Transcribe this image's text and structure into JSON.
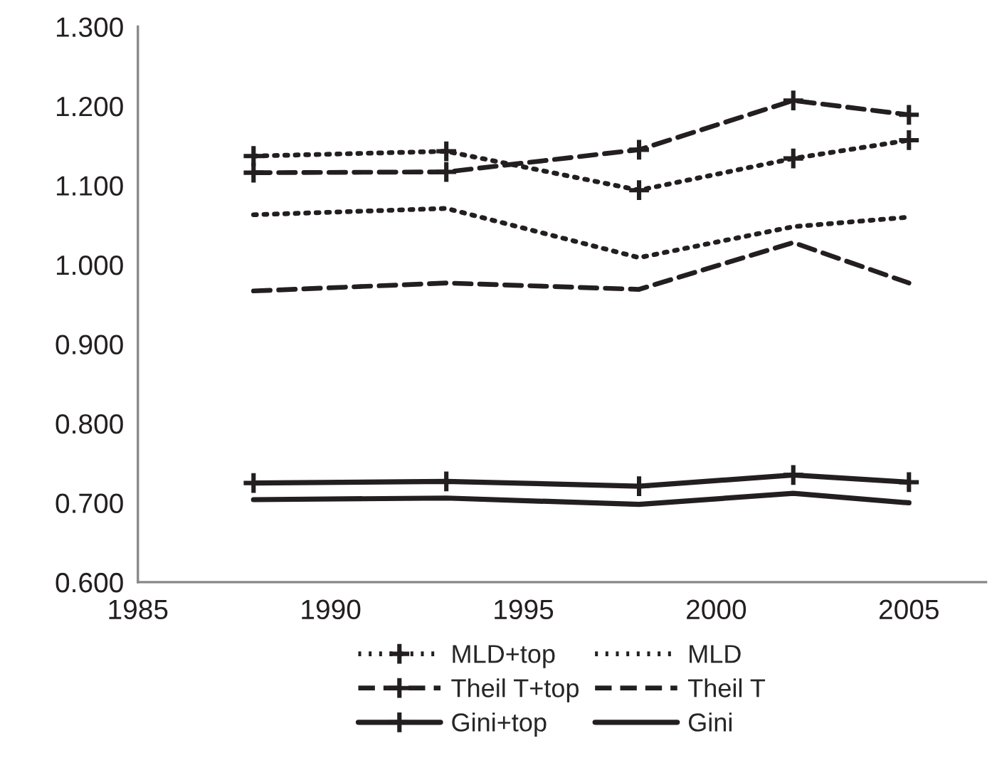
{
  "chart_data": {
    "type": "line",
    "x": [
      1988,
      1993,
      1998,
      2002,
      2005
    ],
    "series": [
      {
        "name": "MLD+top",
        "color": "#231f20",
        "line_style": "dotted",
        "marker": "cross",
        "values": [
          1.137,
          1.143,
          1.094,
          1.134,
          1.157
        ]
      },
      {
        "name": "MLD",
        "color": "#231f20",
        "line_style": "dotted",
        "marker": "none",
        "values": [
          1.063,
          1.071,
          1.009,
          1.048,
          1.06
        ]
      },
      {
        "name": "Theil T+top",
        "color": "#231f20",
        "line_style": "dashed",
        "marker": "cross",
        "values": [
          1.116,
          1.117,
          1.145,
          1.207,
          1.189
        ]
      },
      {
        "name": "Theil T",
        "color": "#231f20",
        "line_style": "dashed",
        "marker": "none",
        "values": [
          0.967,
          0.977,
          0.969,
          1.028,
          0.977
        ]
      },
      {
        "name": "Gini+top",
        "color": "#231f20",
        "line_style": "solid",
        "marker": "cross",
        "values": [
          0.725,
          0.727,
          0.721,
          0.735,
          0.726
        ]
      },
      {
        "name": "Gini",
        "color": "#231f20",
        "line_style": "solid",
        "marker": "none",
        "values": [
          0.704,
          0.706,
          0.698,
          0.712,
          0.7
        ]
      }
    ],
    "xlim": [
      1985,
      2007
    ],
    "xticks": [
      1985,
      1990,
      1995,
      2000,
      2005
    ],
    "ylim": [
      0.6,
      1.3
    ],
    "yticks": [
      {
        "value": 0.6,
        "label": "0.600"
      },
      {
        "value": 0.7,
        "label": "0.700"
      },
      {
        "value": 0.8,
        "label": "0.800"
      },
      {
        "value": 0.9,
        "label": "0.900"
      },
      {
        "value": 1.0,
        "label": "1.000"
      },
      {
        "value": 1.1,
        "label": "1.100"
      },
      {
        "value": 1.2,
        "label": "1.200"
      },
      {
        "value": 1.3,
        "label": "1.300"
      }
    ],
    "grid": false,
    "legend": "bottom"
  }
}
